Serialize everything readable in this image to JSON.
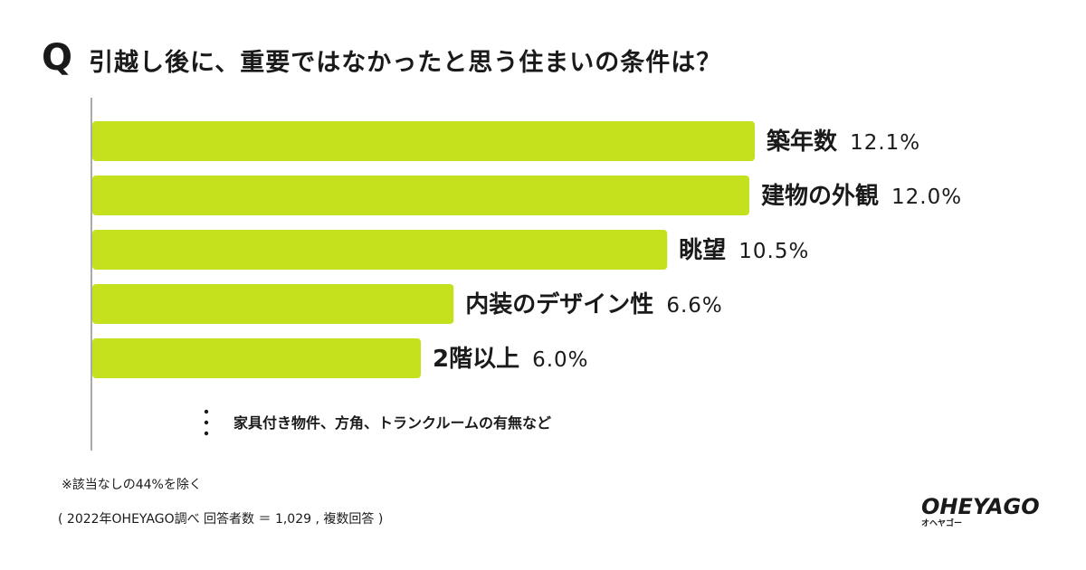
{
  "question": {
    "mark": "Q",
    "text": "引越し後に、重要ではなかったと思う住まいの条件は？"
  },
  "chart_data": {
    "type": "bar",
    "orientation": "horizontal",
    "categories": [
      "築年数",
      "建物の外観",
      "眺望",
      "内装のデザイン性",
      "2階以上"
    ],
    "values": [
      12.1,
      12.0,
      10.5,
      6.6,
      6.0
    ],
    "value_labels": [
      "12.1%",
      "12.0%",
      "10.5%",
      "6.6%",
      "6.0%"
    ],
    "unit": "%",
    "bar_color": "#c5e11d",
    "axis_color": "#aaaaaa"
  },
  "others_text": "家具付き物件、方角、トランクルームの有無など",
  "notes": {
    "exclusion": "※該当なしの44%を除く",
    "source": "( 2022年OHEYAGO調べ 回答者数 ＝ 1,029 , 複数回答 )"
  },
  "logo": {
    "main": "OHEYAGO",
    "sub": "オヘヤゴー"
  }
}
